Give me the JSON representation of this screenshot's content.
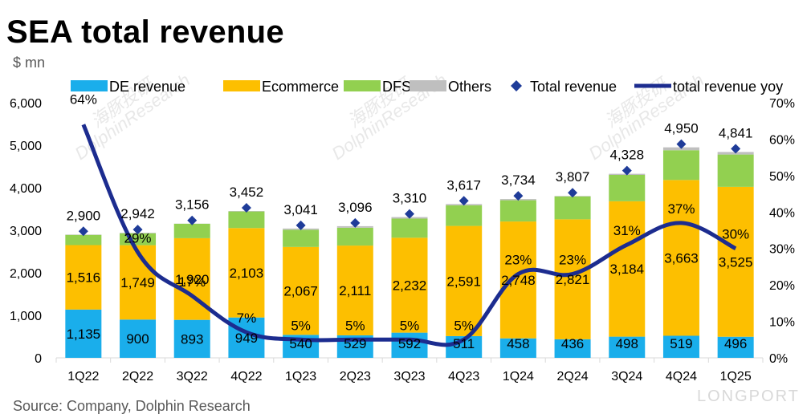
{
  "title": "SEA total revenue",
  "unit": "$ mn",
  "source": "Source: Company, Dolphin Research",
  "watermark": {
    "cn": "海豚投研",
    "en": "DolphinResearch",
    "brand": "LONGPORT"
  },
  "colors": {
    "de": "#1aaeeb",
    "ecommerce": "#fdbf00",
    "dfs": "#92d050",
    "others": "#bfbfbf",
    "total_marker": "#1f3c99",
    "yoy_line": "#1c2c8f",
    "axis": "#d9d9d9"
  },
  "chart_data": {
    "type": "bar",
    "stacked": true,
    "categories": [
      "1Q22",
      "2Q22",
      "3Q22",
      "4Q22",
      "1Q23",
      "2Q23",
      "3Q23",
      "4Q23",
      "1Q24",
      "2Q24",
      "3Q24",
      "4Q24",
      "1Q25"
    ],
    "series": [
      {
        "name": "DE revenue",
        "values": [
          1135,
          900,
          893,
          949,
          540,
          529,
          592,
          511,
          458,
          436,
          498,
          519,
          496
        ]
      },
      {
        "name": "Ecommerce",
        "values": [
          1516,
          1749,
          1920,
          2103,
          2067,
          2111,
          2232,
          2591,
          2748,
          2821,
          3184,
          3663,
          3525
        ]
      },
      {
        "name": "DFS",
        "values": [
          240,
          280,
          340,
          390,
          405,
          420,
          450,
          485,
          500,
          540,
          620,
          700,
          760
        ]
      },
      {
        "name": "Others",
        "values": [
          9,
          13,
          3,
          10,
          29,
          36,
          36,
          30,
          28,
          10,
          26,
          68,
          60
        ]
      }
    ],
    "total_revenue": {
      "name": "Total revenue",
      "type": "scatter",
      "values": [
        2900,
        2942,
        3156,
        3452,
        3041,
        3096,
        3310,
        3617,
        3734,
        3807,
        4328,
        4950,
        4841
      ],
      "labels": [
        "2,900",
        "2,942",
        "3,156",
        "3,452",
        "3,041",
        "3,096",
        "3,310",
        "3,617",
        "3,734",
        "3,807",
        "4,328",
        "4,950",
        "4,841"
      ]
    },
    "total_revenue_yoy": {
      "name": "total revenue yoy",
      "type": "line",
      "axis": "secondary",
      "values": [
        64,
        29,
        17,
        7,
        5,
        5,
        5,
        5,
        23,
        23,
        31,
        37,
        30
      ],
      "labels": [
        "64%",
        "29%",
        "17%",
        "7%",
        "5%",
        "5%",
        "5%",
        "5%",
        "23%",
        "23%",
        "31%",
        "37%",
        "30%"
      ]
    },
    "de_labels": [
      "1,135",
      "900",
      "893",
      "949",
      "540",
      "529",
      "592",
      "511",
      "458",
      "436",
      "498",
      "519",
      "496"
    ],
    "ecommerce_labels": [
      "1,516",
      "1,749",
      "1,920",
      "2,103",
      "2,067",
      "2,111",
      "2,232",
      "2,591",
      "2,748",
      "2,821",
      "3,184",
      "3,663",
      "3,525"
    ],
    "ylim": [
      0,
      6000
    ],
    "yticks": [
      "0",
      "1,000",
      "2,000",
      "3,000",
      "4,000",
      "5,000",
      "6,000"
    ],
    "y2lim": [
      0,
      70
    ],
    "y2ticks": [
      "0%",
      "10%",
      "20%",
      "30%",
      "40%",
      "50%",
      "60%",
      "70%"
    ],
    "legend": [
      "DE revenue",
      "Ecommerce",
      "DFS",
      "Others",
      "Total revenue",
      "total revenue yoy"
    ],
    "legend_position": "top",
    "grid": false
  }
}
